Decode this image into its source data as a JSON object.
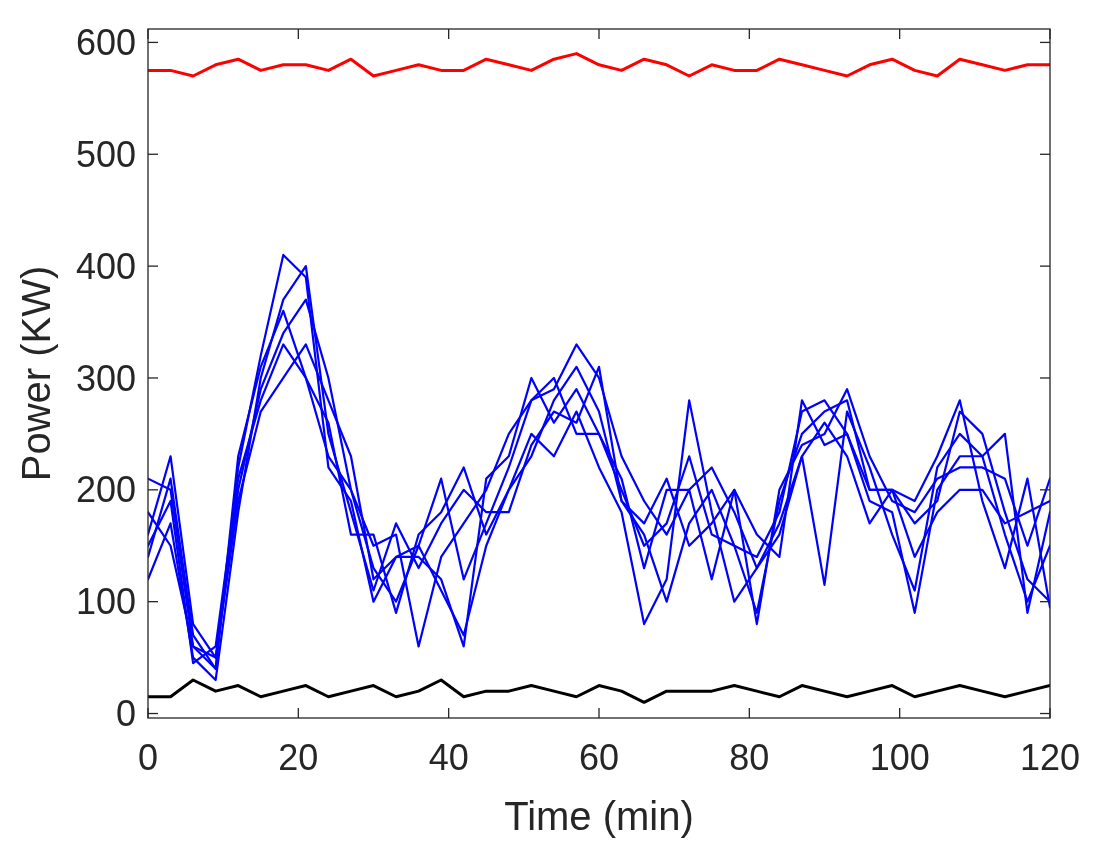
{
  "chart_data": {
    "type": "line",
    "xlabel": "Time (min)",
    "ylabel": "Power (KW)",
    "x": [
      0,
      3,
      6,
      9,
      12,
      15,
      18,
      21,
      24,
      27,
      30,
      33,
      36,
      39,
      42,
      45,
      48,
      51,
      54,
      57,
      60,
      63,
      66,
      69,
      72,
      75,
      78,
      81,
      84,
      87,
      90,
      93,
      96,
      99,
      102,
      105,
      108,
      111,
      114,
      117,
      120
    ],
    "xlim": [
      0,
      120
    ],
    "xticks": [
      0,
      20,
      40,
      60,
      80,
      100,
      120
    ],
    "ylim": [
      -4,
      612
    ],
    "yticks": [
      0,
      100,
      200,
      300,
      400,
      500,
      600
    ],
    "grid": false,
    "marker": "none",
    "line_style": "solid",
    "series": [
      {
        "color": "#ff0000",
        "values": [
          575,
          575,
          570,
          580,
          585,
          575,
          580,
          580,
          575,
          585,
          570,
          575,
          580,
          575,
          575,
          585,
          580,
          575,
          585,
          590,
          580,
          575,
          585,
          580,
          570,
          580,
          575,
          575,
          585,
          580,
          575,
          570,
          580,
          585,
          575,
          570,
          585,
          580,
          575,
          580,
          580
        ]
      },
      {
        "color": "#000000",
        "values": [
          15,
          15,
          30,
          20,
          25,
          15,
          20,
          25,
          15,
          20,
          25,
          15,
          20,
          30,
          15,
          20,
          20,
          25,
          20,
          15,
          25,
          20,
          10,
          20,
          20,
          20,
          25,
          20,
          15,
          25,
          20,
          15,
          20,
          25,
          15,
          20,
          25,
          20,
          15,
          20,
          25
        ]
      },
      {
        "color": "#0000ff",
        "values": [
          210,
          200,
          60,
          40,
          220,
          320,
          410,
          390,
          220,
          190,
          100,
          140,
          150,
          210,
          120,
          170,
          220,
          280,
          300,
          250,
          250,
          200,
          150,
          170,
          230,
          160,
          150,
          90,
          190,
          250,
          270,
          280,
          200,
          200,
          170,
          190,
          270,
          250,
          180,
          120,
          100
        ]
      },
      {
        "color": "#0000ff",
        "values": [
          160,
          230,
          80,
          50,
          200,
          290,
          340,
          370,
          300,
          200,
          150,
          160,
          60,
          140,
          170,
          200,
          250,
          280,
          290,
          330,
          300,
          230,
          190,
          160,
          200,
          220,
          180,
          130,
          170,
          230,
          115,
          270,
          220,
          160,
          110,
          220,
          250,
          230,
          160,
          100,
          150
        ]
      },
      {
        "color": "#0000ff",
        "values": [
          120,
          170,
          50,
          30,
          180,
          300,
          370,
          400,
          250,
          180,
          110,
          170,
          130,
          170,
          200,
          180,
          180,
          240,
          270,
          260,
          310,
          190,
          160,
          100,
          170,
          200,
          150,
          140,
          180,
          270,
          280,
          250,
          190,
          180,
          90,
          200,
          230,
          230,
          250,
          90,
          180
        ]
      },
      {
        "color": "#0000ff",
        "values": [
          150,
          190,
          45,
          60,
          210,
          280,
          330,
          300,
          230,
          200,
          130,
          100,
          150,
          110,
          70,
          150,
          200,
          250,
          230,
          270,
          220,
          180,
          80,
          120,
          280,
          180,
          100,
          130,
          160,
          230,
          260,
          230,
          170,
          200,
          140,
          180,
          200,
          200,
          170,
          180,
          190
        ]
      },
      {
        "color": "#0000ff",
        "values": [
          180,
          150,
          60,
          50,
          190,
          270,
          300,
          330,
          280,
          230,
          120,
          140,
          140,
          120,
          60,
          210,
          230,
          300,
          260,
          290,
          250,
          210,
          130,
          200,
          200,
          120,
          200,
          80,
          200,
          240,
          250,
          290,
          230,
          190,
          180,
          210,
          220,
          220,
          210,
          150,
          210
        ]
      },
      {
        "color": "#0000ff",
        "values": [
          140,
          210,
          70,
          40,
          230,
          310,
          360,
          300,
          260,
          160,
          160,
          90,
          160,
          180,
          220,
          160,
          200,
          230,
          280,
          310,
          270,
          190,
          170,
          210,
          150,
          170,
          200,
          160,
          140,
          280,
          240,
          250,
          200,
          200,
          190,
          230,
          280,
          190,
          130,
          210,
          95
        ]
      }
    ]
  }
}
